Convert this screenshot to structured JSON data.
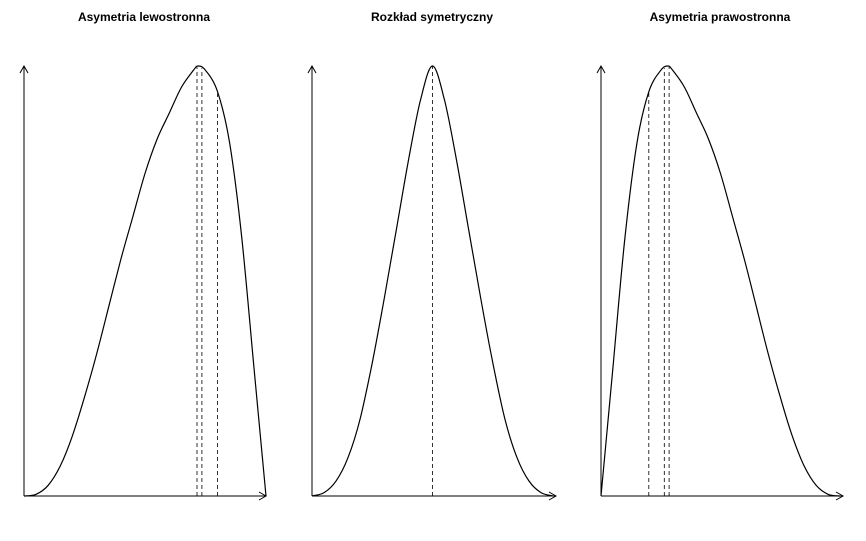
{
  "chart_data": [
    {
      "type": "line",
      "title": "Asymetria lewostronna",
      "shape": "left-skewed density curve",
      "x": [
        0,
        0.05,
        0.1,
        0.15,
        0.2,
        0.25,
        0.3,
        0.35,
        0.4,
        0.45,
        0.5,
        0.55,
        0.6,
        0.65,
        0.7,
        0.72,
        0.75,
        0.8,
        0.85,
        0.9,
        0.95,
        1.0
      ],
      "y": [
        0,
        0.004,
        0.025,
        0.07,
        0.14,
        0.23,
        0.33,
        0.44,
        0.55,
        0.65,
        0.75,
        0.83,
        0.89,
        0.95,
        0.99,
        1.0,
        0.99,
        0.94,
        0.82,
        0.6,
        0.3,
        0
      ],
      "dashed_lines": [
        0.715,
        0.735,
        0.8
      ],
      "xlim": [
        0,
        1
      ],
      "ylim": [
        0,
        1
      ],
      "axes": "arrows",
      "grid": false,
      "xlabel": "",
      "ylabel": ""
    },
    {
      "type": "line",
      "title": "Rozkład symetryczny",
      "shape": "symmetric bell curve",
      "x": [
        0,
        0.05,
        0.1,
        0.15,
        0.2,
        0.25,
        0.3,
        0.35,
        0.4,
        0.45,
        0.5,
        0.55,
        0.6,
        0.65,
        0.7,
        0.75,
        0.8,
        0.85,
        0.9,
        0.95,
        1.0
      ],
      "y": [
        0,
        0.008,
        0.035,
        0.09,
        0.18,
        0.31,
        0.46,
        0.62,
        0.78,
        0.92,
        1.0,
        0.92,
        0.78,
        0.62,
        0.46,
        0.31,
        0.18,
        0.09,
        0.035,
        0.008,
        0
      ],
      "dashed_lines": [
        0.5
      ],
      "xlim": [
        0,
        1
      ],
      "ylim": [
        0,
        1
      ],
      "axes": "arrows",
      "grid": false,
      "xlabel": "",
      "ylabel": ""
    },
    {
      "type": "line",
      "title": "Asymetria prawostronna",
      "shape": "right-skewed density curve",
      "x": [
        0,
        0.05,
        0.1,
        0.15,
        0.2,
        0.25,
        0.28,
        0.3,
        0.35,
        0.4,
        0.45,
        0.5,
        0.55,
        0.6,
        0.65,
        0.7,
        0.75,
        0.8,
        0.85,
        0.9,
        0.95,
        1.0
      ],
      "y": [
        0,
        0.3,
        0.6,
        0.82,
        0.94,
        0.99,
        1.0,
        0.99,
        0.95,
        0.89,
        0.83,
        0.75,
        0.65,
        0.55,
        0.44,
        0.33,
        0.23,
        0.14,
        0.07,
        0.025,
        0.004,
        0
      ],
      "dashed_lines": [
        0.2,
        0.265,
        0.285
      ],
      "xlim": [
        0,
        1
      ],
      "ylim": [
        0,
        1
      ],
      "axes": "arrows",
      "grid": false,
      "xlabel": "",
      "ylabel": ""
    }
  ]
}
